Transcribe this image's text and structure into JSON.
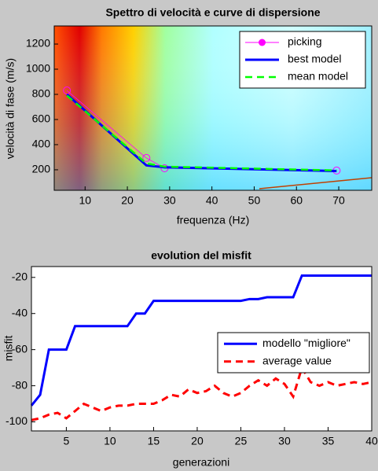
{
  "chart_data": [
    {
      "type": "line",
      "title": "Spettro di velocità e curve di dispersione",
      "xlabel": "frequenza (Hz)",
      "ylabel": "velocità di fase (m/s)",
      "xlim": [
        2.7,
        77.8
      ],
      "ylim": [
        37,
        1344
      ],
      "xticks": [
        10,
        20,
        30,
        40,
        50,
        60,
        70
      ],
      "yticks": [
        200,
        400,
        600,
        800,
        1000,
        1200
      ],
      "legend": "northeast",
      "series": [
        {
          "name": "picking",
          "color": "#ff00ff",
          "linestyle": "-",
          "marker": "o",
          "width": 0.8,
          "x": [
            5.7,
            24.5,
            28.8,
            69.5
          ],
          "values": [
            831,
            294,
            212,
            194
          ]
        },
        {
          "name": "best model",
          "color": "#0000ff",
          "linestyle": "-",
          "width": 3,
          "x": [
            5.7,
            24.5,
            28.8,
            69.5
          ],
          "values": [
            800,
            235,
            220,
            190
          ]
        },
        {
          "name": "mean model",
          "color": "#00ff00",
          "linestyle": "--",
          "width": 2.5,
          "x": [
            5.7,
            24.5,
            28.8,
            69.5
          ],
          "values": [
            790,
            250,
            225,
            195
          ]
        }
      ]
    },
    {
      "type": "line",
      "title": "evolution del misfit",
      "xlabel": "generazioni",
      "ylabel": "misfit",
      "xlim": [
        1,
        40
      ],
      "ylim": [
        -105,
        -14
      ],
      "xticks": [
        5,
        10,
        15,
        20,
        25,
        30,
        35,
        40
      ],
      "yticks": [
        -100,
        -80,
        -60,
        -40,
        -20
      ],
      "legend": "east",
      "x": [
        1,
        2,
        3,
        4,
        5,
        6,
        7,
        8,
        9,
        10,
        11,
        12,
        13,
        14,
        15,
        16,
        17,
        18,
        19,
        20,
        21,
        22,
        23,
        24,
        25,
        26,
        27,
        28,
        29,
        30,
        31,
        32,
        33,
        34,
        35,
        36,
        37,
        38,
        39,
        40
      ],
      "series": [
        {
          "name": "modello \"migliore\"",
          "color": "#0000ff",
          "linestyle": "-",
          "width": 3,
          "values": [
            -91,
            -85,
            -60,
            -60,
            -60,
            -47,
            -47,
            -47,
            -47,
            -47,
            -47,
            -47,
            -40,
            -40,
            -33,
            -33,
            -33,
            -33,
            -33,
            -33,
            -33,
            -33,
            -33,
            -33,
            -33,
            -32,
            -32,
            -31,
            -31,
            -31,
            -31,
            -19,
            -19,
            -19,
            -19,
            -19,
            -19,
            -19,
            -19,
            -19
          ]
        },
        {
          "name": "average value",
          "color": "#ff0000",
          "linestyle": "--",
          "width": 3,
          "values": [
            -99,
            -98,
            -96,
            -95,
            -98,
            -94,
            -90,
            -92,
            -94,
            -92,
            -91,
            -91,
            -90,
            -90,
            -90,
            -88,
            -85,
            -86,
            -82,
            -84,
            -83,
            -80,
            -84,
            -86,
            -84,
            -80,
            -77,
            -80,
            -76,
            -79,
            -86,
            -70,
            -78,
            -80,
            -78,
            -80,
            -79,
            -78,
            -79,
            -78
          ]
        }
      ]
    }
  ]
}
